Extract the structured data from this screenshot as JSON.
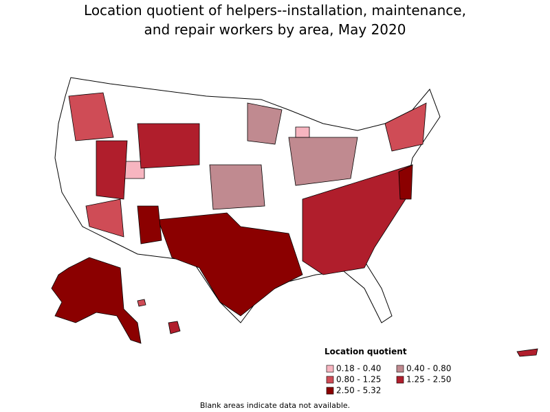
{
  "title_lines": [
    "Location quotient of helpers--installation, maintenance,",
    "and repair workers by area, May 2020"
  ],
  "legend": {
    "title": "Location quotient",
    "items": [
      {
        "label": "0.18 - 0.40",
        "color": "#f7b5c0"
      },
      {
        "label": "0.40 - 0.80",
        "color": "#c08a90"
      },
      {
        "label": "0.80 - 1.25",
        "color": "#cf4c56"
      },
      {
        "label": "1.25 - 2.50",
        "color": "#b01e2c"
      },
      {
        "label": "2.50 - 5.32",
        "color": "#8b0000"
      }
    ]
  },
  "note": "Blank areas indicate data not available."
}
